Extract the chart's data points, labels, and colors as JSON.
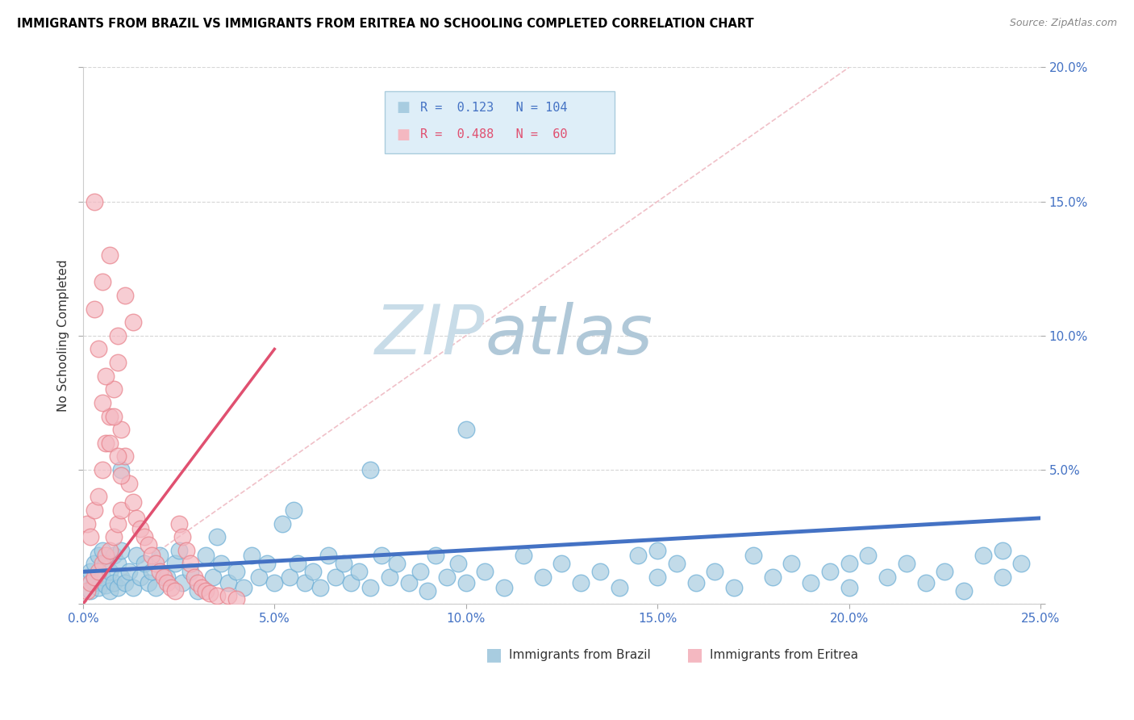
{
  "title": "IMMIGRANTS FROM BRAZIL VS IMMIGRANTS FROM ERITREA NO SCHOOLING COMPLETED CORRELATION CHART",
  "source": "Source: ZipAtlas.com",
  "ylabel": "No Schooling Completed",
  "xlim": [
    0,
    0.25
  ],
  "ylim": [
    0,
    0.2
  ],
  "xticks": [
    0.0,
    0.05,
    0.1,
    0.15,
    0.2,
    0.25
  ],
  "yticks": [
    0.0,
    0.05,
    0.1,
    0.15,
    0.2
  ],
  "xtick_labels": [
    "0.0%",
    "5.0%",
    "10.0%",
    "15.0%",
    "20.0%",
    "25.0%"
  ],
  "ytick_labels_right": [
    "",
    "5.0%",
    "10.0%",
    "15.0%",
    "20.0%"
  ],
  "brazil_r": 0.123,
  "brazil_n": 104,
  "eritrea_r": 0.488,
  "eritrea_n": 60,
  "brazil_color": "#a8cce0",
  "eritrea_color": "#f4b8c1",
  "brazil_edge_color": "#6baed6",
  "eritrea_edge_color": "#e8808a",
  "brazil_line_color": "#4472c4",
  "eritrea_line_color": "#e05070",
  "watermark_zip_color": "#c8dce8",
  "watermark_atlas_color": "#b0c8d8",
  "legend_box_color": "#deeef8",
  "legend_border_color": "#aaccdd",
  "brazil_r_color": "#4472c4",
  "eritrea_r_color": "#e05070",
  "diag_color": "#f0c0c8",
  "brazil_scatter_x": [
    0.001,
    0.002,
    0.002,
    0.003,
    0.003,
    0.004,
    0.004,
    0.005,
    0.005,
    0.006,
    0.006,
    0.007,
    0.007,
    0.008,
    0.008,
    0.009,
    0.009,
    0.01,
    0.01,
    0.011,
    0.012,
    0.013,
    0.014,
    0.015,
    0.016,
    0.017,
    0.018,
    0.019,
    0.02,
    0.022,
    0.024,
    0.026,
    0.028,
    0.03,
    0.032,
    0.034,
    0.036,
    0.038,
    0.04,
    0.042,
    0.044,
    0.046,
    0.048,
    0.05,
    0.052,
    0.054,
    0.056,
    0.058,
    0.06,
    0.062,
    0.064,
    0.066,
    0.068,
    0.07,
    0.072,
    0.075,
    0.078,
    0.08,
    0.082,
    0.085,
    0.088,
    0.09,
    0.092,
    0.095,
    0.098,
    0.1,
    0.105,
    0.11,
    0.115,
    0.12,
    0.125,
    0.13,
    0.135,
    0.14,
    0.145,
    0.15,
    0.155,
    0.16,
    0.165,
    0.17,
    0.175,
    0.18,
    0.185,
    0.19,
    0.195,
    0.2,
    0.205,
    0.21,
    0.215,
    0.22,
    0.225,
    0.23,
    0.235,
    0.24,
    0.245,
    0.025,
    0.035,
    0.055,
    0.075,
    0.1,
    0.15,
    0.2,
    0.24,
    0.01
  ],
  "brazil_scatter_y": [
    0.01,
    0.005,
    0.012,
    0.008,
    0.015,
    0.006,
    0.018,
    0.01,
    0.02,
    0.007,
    0.015,
    0.005,
    0.012,
    0.008,
    0.018,
    0.006,
    0.015,
    0.01,
    0.02,
    0.008,
    0.012,
    0.006,
    0.018,
    0.01,
    0.015,
    0.008,
    0.012,
    0.006,
    0.018,
    0.01,
    0.015,
    0.008,
    0.012,
    0.005,
    0.018,
    0.01,
    0.015,
    0.008,
    0.012,
    0.006,
    0.018,
    0.01,
    0.015,
    0.008,
    0.03,
    0.01,
    0.015,
    0.008,
    0.012,
    0.006,
    0.018,
    0.01,
    0.015,
    0.008,
    0.012,
    0.006,
    0.018,
    0.01,
    0.015,
    0.008,
    0.012,
    0.005,
    0.018,
    0.01,
    0.015,
    0.008,
    0.012,
    0.006,
    0.018,
    0.01,
    0.015,
    0.008,
    0.012,
    0.006,
    0.018,
    0.01,
    0.015,
    0.008,
    0.012,
    0.006,
    0.018,
    0.01,
    0.015,
    0.008,
    0.012,
    0.006,
    0.018,
    0.01,
    0.015,
    0.008,
    0.012,
    0.005,
    0.018,
    0.01,
    0.015,
    0.02,
    0.025,
    0.035,
    0.05,
    0.065,
    0.02,
    0.015,
    0.02,
    0.05
  ],
  "eritrea_scatter_x": [
    0.001,
    0.001,
    0.002,
    0.002,
    0.003,
    0.003,
    0.004,
    0.004,
    0.005,
    0.005,
    0.006,
    0.006,
    0.007,
    0.007,
    0.008,
    0.008,
    0.009,
    0.009,
    0.01,
    0.01,
    0.011,
    0.012,
    0.013,
    0.014,
    0.015,
    0.016,
    0.017,
    0.018,
    0.019,
    0.02,
    0.021,
    0.022,
    0.023,
    0.024,
    0.025,
    0.026,
    0.027,
    0.028,
    0.029,
    0.03,
    0.031,
    0.032,
    0.033,
    0.035,
    0.038,
    0.04,
    0.003,
    0.004,
    0.005,
    0.006,
    0.007,
    0.008,
    0.009,
    0.01,
    0.003,
    0.005,
    0.007,
    0.009,
    0.011,
    0.013
  ],
  "eritrea_scatter_y": [
    0.005,
    0.03,
    0.008,
    0.025,
    0.01,
    0.035,
    0.012,
    0.04,
    0.015,
    0.05,
    0.018,
    0.06,
    0.02,
    0.07,
    0.025,
    0.08,
    0.03,
    0.09,
    0.035,
    0.065,
    0.055,
    0.045,
    0.038,
    0.032,
    0.028,
    0.025,
    0.022,
    0.018,
    0.015,
    0.012,
    0.01,
    0.008,
    0.006,
    0.005,
    0.03,
    0.025,
    0.02,
    0.015,
    0.01,
    0.008,
    0.006,
    0.005,
    0.004,
    0.003,
    0.003,
    0.002,
    0.11,
    0.095,
    0.075,
    0.085,
    0.06,
    0.07,
    0.055,
    0.048,
    0.15,
    0.12,
    0.13,
    0.1,
    0.115,
    0.105
  ],
  "brazil_trend_x": [
    0.0,
    0.25
  ],
  "brazil_trend_y": [
    0.012,
    0.032
  ],
  "eritrea_trend_x": [
    0.0,
    0.05
  ],
  "eritrea_trend_y": [
    0.0,
    0.095
  ]
}
